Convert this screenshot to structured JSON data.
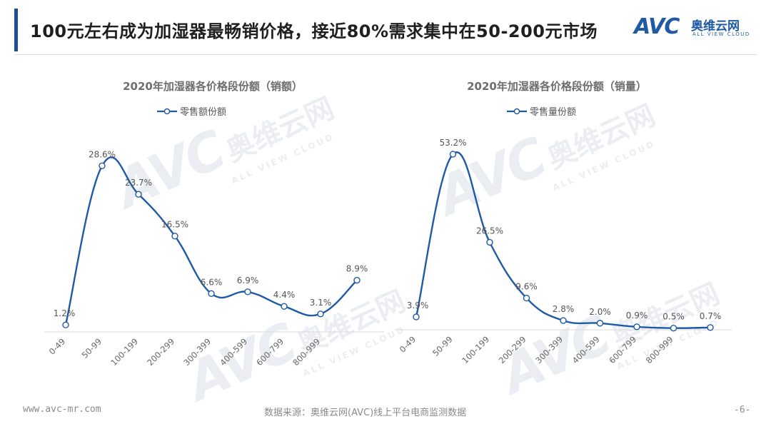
{
  "header": {
    "title": "100元左右成为加湿器最畅销价格，接近80%需求集中在50-200元市场",
    "logo": {
      "mark": "AVC",
      "cn": "奥维云网",
      "en": "ALL VIEW CLOUD"
    }
  },
  "watermark": {
    "mark": "AVC",
    "cn": "奥维云网",
    "en": "ALL VIEW CLOUD"
  },
  "colors": {
    "accent": "#1f4e96",
    "line": "#1f5aa6",
    "marker_fill": "#ffffff"
  },
  "chart_data": [
    {
      "type": "line",
      "title": "2020年加湿器各价格段份额（销额）",
      "legend_position": "top-center",
      "grid": false,
      "smooth": true,
      "categories": [
        "0-49",
        "50-99",
        "100-199",
        "200-299",
        "300-399",
        "400-599",
        "600-799",
        "800-999",
        ""
      ],
      "series": [
        {
          "name": "零售额份额",
          "values": [
            1.2,
            28.6,
            23.7,
            16.5,
            6.6,
            6.9,
            4.4,
            3.1,
            8.9
          ],
          "labels": [
            "1.2%",
            "28.6%",
            "23.7%",
            "16.5%",
            "6.6%",
            "6.9%",
            "4.4%",
            "3.1%",
            "8.9%"
          ]
        }
      ],
      "ylim": [
        0,
        30.6
      ]
    },
    {
      "type": "line",
      "title": "2020年加湿器各价格段份额（销量）",
      "legend_position": "top-center",
      "grid": false,
      "smooth": true,
      "categories": [
        "0-49",
        "50-99",
        "100-199",
        "200-299",
        "300-399",
        "400-599",
        "600-799",
        "800-999",
        ""
      ],
      "series": [
        {
          "name": "零售量份额",
          "values": [
            3.9,
            53.2,
            26.5,
            9.6,
            2.8,
            2.0,
            0.9,
            0.5,
            0.7
          ],
          "labels": [
            "3.9%",
            "53.2%",
            "26.5%",
            "9.6%",
            "2.8%",
            "2.0%",
            "0.9%",
            "0.5%",
            "0.7%"
          ]
        }
      ],
      "ylim": [
        0,
        54.5
      ]
    }
  ],
  "footer": {
    "url": "www.avc-mr.com",
    "source": "数据来源：奥维云网(AVC)线上平台电商监测数据",
    "page": "-6-"
  }
}
